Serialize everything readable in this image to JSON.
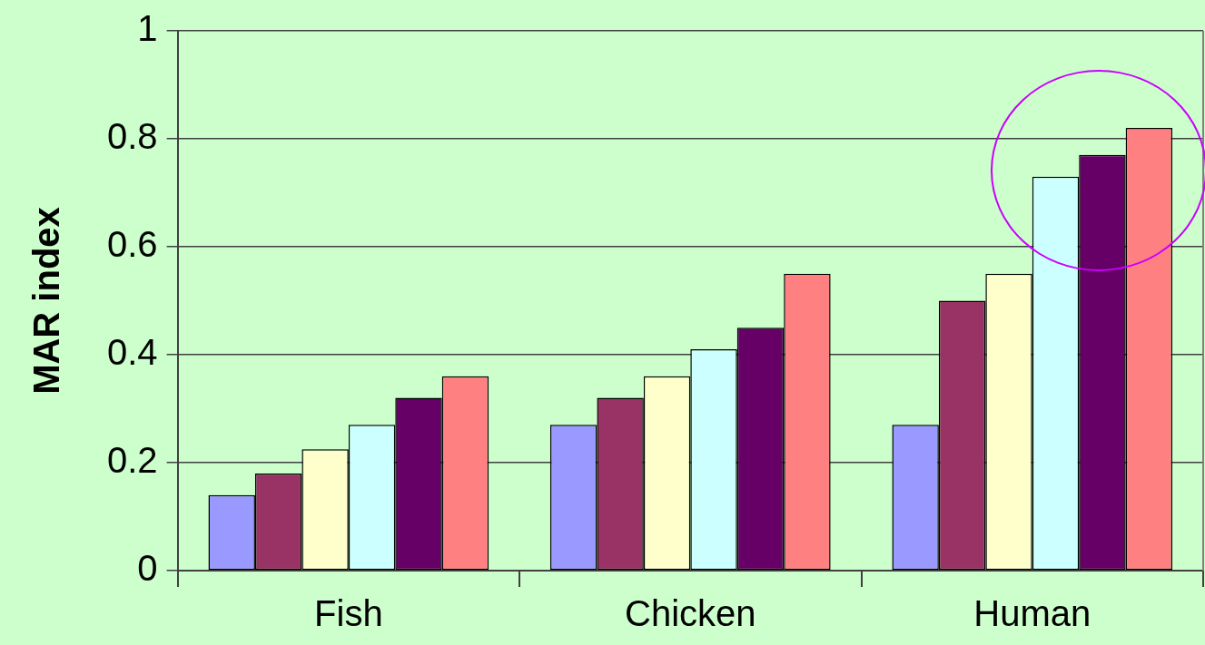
{
  "chart_data": {
    "type": "bar",
    "ylabel": "MAR index",
    "categories": [
      "Fish",
      "Chicken",
      "Human"
    ],
    "series": [
      {
        "color": "#9999ff",
        "values": [
          0.14,
          0.27,
          0.27
        ]
      },
      {
        "color": "#993366",
        "values": [
          0.18,
          0.32,
          0.5
        ]
      },
      {
        "color": "#ffffcc",
        "values": [
          0.225,
          0.36,
          0.55
        ]
      },
      {
        "color": "#ccffff",
        "values": [
          0.27,
          0.41,
          0.73
        ]
      },
      {
        "color": "#660066",
        "values": [
          0.32,
          0.45,
          0.77
        ]
      },
      {
        "color": "#ff8080",
        "values": [
          0.36,
          0.55,
          0.82
        ]
      }
    ],
    "ylim": [
      0,
      1
    ],
    "yticks": [
      0,
      0.2,
      0.4,
      0.6,
      0.8,
      1
    ],
    "grid": "y",
    "legend": false
  }
}
